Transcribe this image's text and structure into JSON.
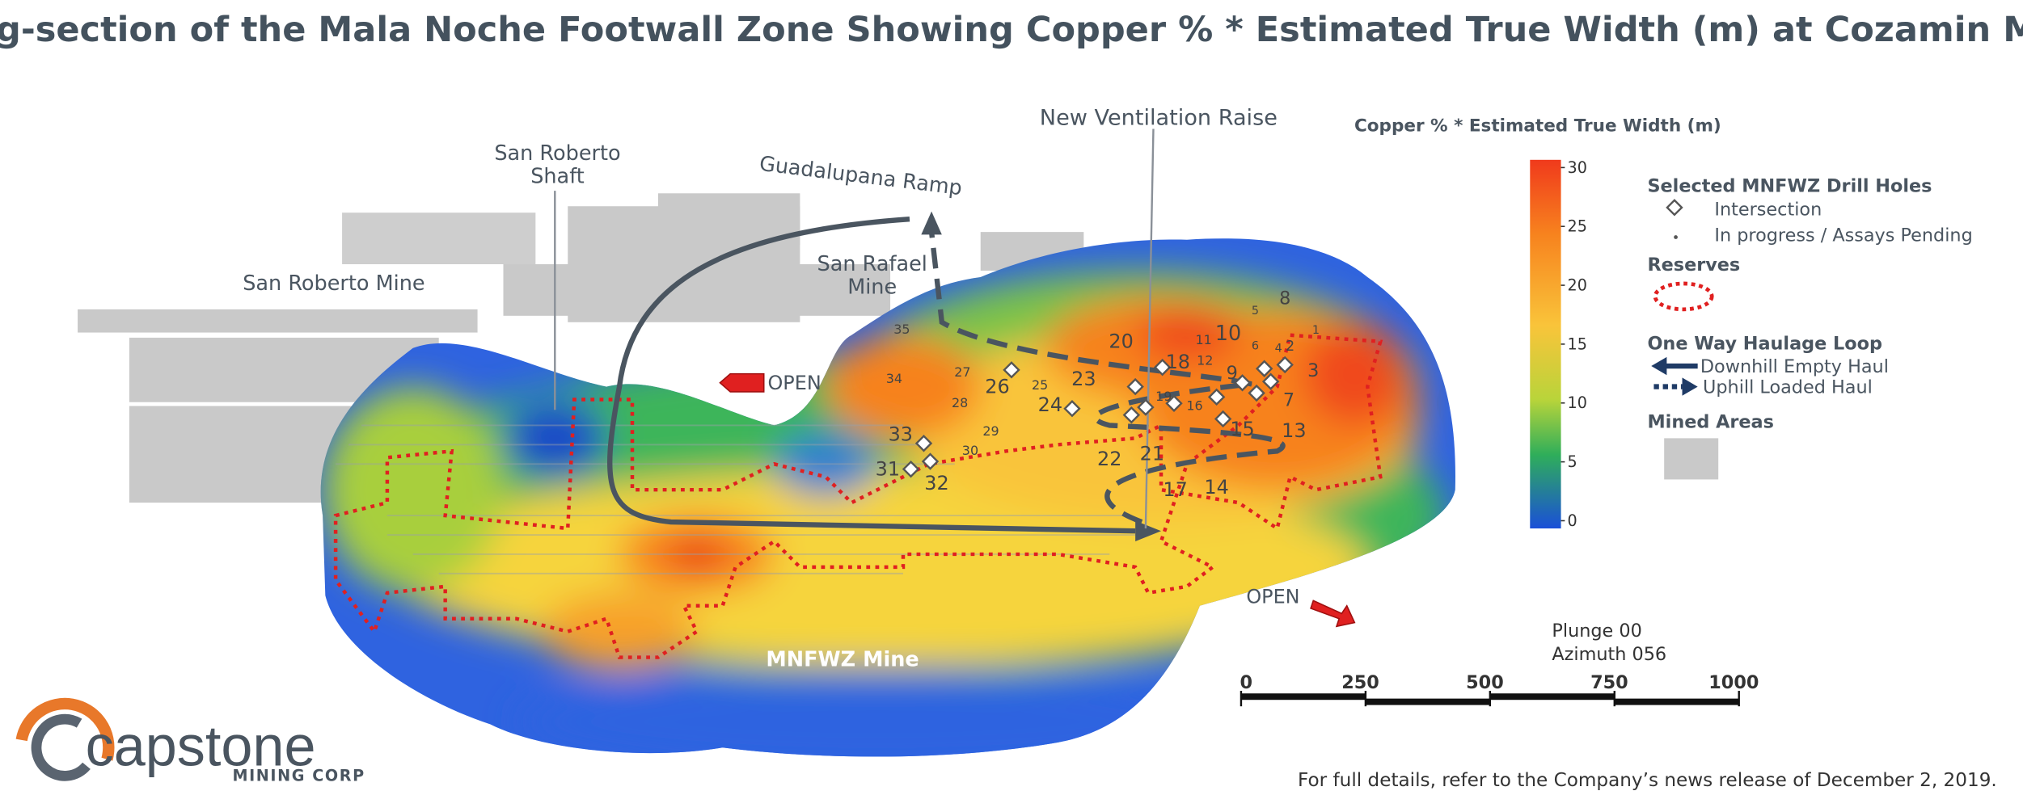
{
  "title": "Long-section of the Mala Noche Footwall Zone Showing Copper % * Estimated True Width (m) at Cozamin Mine",
  "map_labels": {
    "san_roberto_mine": "San Roberto Mine",
    "san_roberto_shaft": [
      "San Roberto",
      "Shaft"
    ],
    "guadalupana_ramp": "Guadalupana Ramp",
    "san_rafael_mine": [
      "San Rafael",
      "Mine"
    ],
    "new_ventilation_raise": "New Ventilation Raise",
    "open_west": "OPEN",
    "open_east": "OPEN",
    "mnfwz_mine": "MNFWZ Mine"
  },
  "drill_holes": [
    "1",
    "2",
    "3",
    "4",
    "5",
    "6",
    "7",
    "8",
    "9",
    "10",
    "11",
    "12",
    "13",
    "14",
    "15",
    "16",
    "17",
    "18",
    "19",
    "20",
    "21",
    "22",
    "23",
    "24",
    "25",
    "26",
    "27",
    "28",
    "29",
    "30",
    "31",
    "32",
    "33",
    "34",
    "35"
  ],
  "colorbar": {
    "title": "Copper % * Estimated True Width (m)",
    "ticks": [
      30,
      25,
      20,
      15,
      10,
      5,
      0
    ]
  },
  "legend": {
    "drill_holes_title": "Selected MNFWZ Drill Holes",
    "intersection": "Intersection",
    "in_progress": "In progress / Assays Pending",
    "reserves": "Reserves",
    "haulage_title": "One Way Haulage Loop",
    "downhill": "Downhill Empty Haul",
    "uphill": "Uphill Loaded Haul",
    "mined_areas": "Mined Areas"
  },
  "orientation": [
    "Plunge 00",
    "Azimuth 056"
  ],
  "scale_bar": [
    0,
    250,
    500,
    750,
    1000
  ],
  "logo": {
    "name": "capstone",
    "sub": "MINING CORP"
  },
  "footer": "For full details, refer to the Company’s news release of December 2, 2019."
}
